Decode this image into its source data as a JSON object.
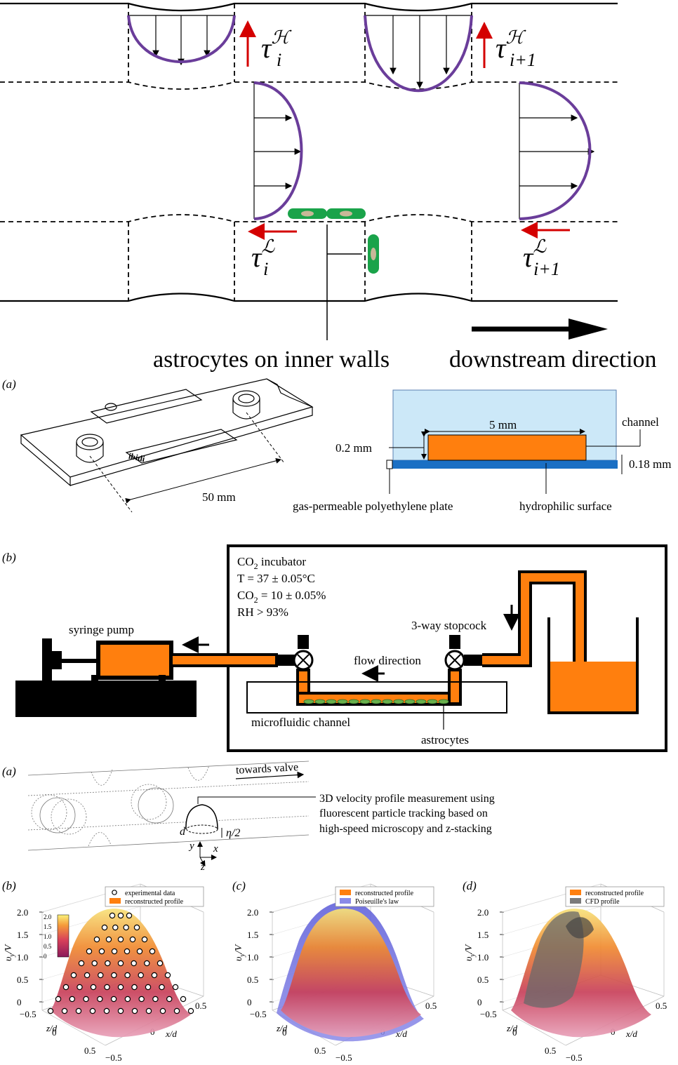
{
  "top_panel": {
    "tau_h_i": "τ",
    "tau_h_i_sup": "ℋ",
    "tau_h_i_sub": "i",
    "tau_h_i1": "τ",
    "tau_h_i1_sup": "ℋ",
    "tau_h_i1_sub": "i+1",
    "tau_l_i": "τ",
    "tau_l_i_sup": "ℒ",
    "tau_l_i_sub": "i",
    "tau_l_i1": "τ",
    "tau_l_i1_sup": "ℒ",
    "tau_l_i1_sub": "i+1",
    "astrocytes_label": "astrocytes on inner walls",
    "downstream_label": "downstream direction",
    "profile_color": "#6a3d9a",
    "cell_color": "#1aa34a",
    "shear_arrow_color": "#d40000"
  },
  "panel_a1": {
    "label": "(a)",
    "length_label": "50 mm",
    "width_label": "5 mm",
    "height_label": "0.2 mm",
    "plate_label": "0.18 mm",
    "channel_label": "channel",
    "gas_label": "gas-permeable polyethylene plate",
    "hydro_label": "hydrophilic surface",
    "chip_text": "ibidi",
    "channel_fill": "#ff7f0e",
    "block_fill": "#cce8f8",
    "plate_fill": "#1a6fc4"
  },
  "panel_b1": {
    "label": "(b)",
    "incubator_line1": "CO",
    "incubator_line1_sub": "2",
    "incubator_line1_rest": " incubator",
    "temp": "T = 37 ± 0.05°C",
    "co2_a": "CO",
    "co2_sub": "2",
    "co2_b": " = 10 ± 0.05%",
    "rh": "RH > 93%",
    "pump_label": "syringe pump",
    "stopcock_label": "3-way stopcock",
    "flow_label": "flow direction",
    "channel_label": "microfluidic channel",
    "astro_label": "astrocytes",
    "fluid_color": "#ff7f0e"
  },
  "panel_a2": {
    "label": "(a)",
    "towards_label": "towards valve",
    "desc_line1": "3D velocity profile measurement using",
    "desc_line2": "fluorescent particle tracking based on",
    "desc_line3": "high-speed microscopy and z-stacking",
    "d_label": "d",
    "eta_label": "η/2",
    "axis_x": "x",
    "axis_y": "y",
    "axis_z": "z"
  },
  "panel_b2": {
    "label": "(b)",
    "legend1": "experimental data",
    "legend2": "reconstructed profile",
    "cbar_ticks": [
      "2.0",
      "1.5",
      "1.0",
      "0.5",
      "0"
    ]
  },
  "panel_c2": {
    "label": "(c)",
    "legend1": "reconstructed profile",
    "legend2": "Poiseuille's law"
  },
  "panel_d2": {
    "label": "(d)",
    "legend1": "reconstructed profile",
    "legend2": "CFD profile"
  },
  "axes3d": {
    "vy_label": "υ",
    "vy_sub": "y",
    "vy_rest": "/V",
    "z_ticks": [
      "2.0",
      "1.5",
      "1.0",
      "0.5",
      "0"
    ],
    "zd_label": "z/d",
    "xd_label": "x/d",
    "zd_ticks": [
      "−0.5",
      "0",
      "0.5"
    ],
    "xd_ticks": [
      "−0.5",
      "0",
      "0.5"
    ]
  }
}
